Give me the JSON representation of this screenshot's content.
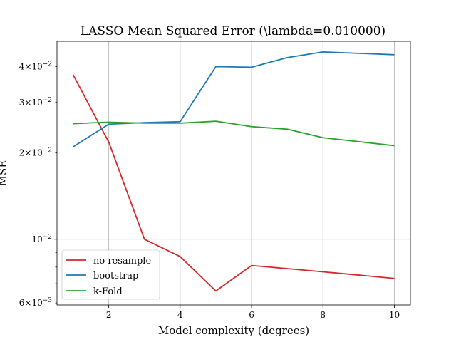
{
  "chart_data": {
    "type": "line",
    "title": "LASSO Mean Squared Error (\\lambda=0.010000)",
    "xlabel": "Model complexity (degrees)",
    "ylabel": "MSE",
    "yscale": "log",
    "grid": true,
    "legend": "bottom-left",
    "x": [
      1,
      2,
      3,
      4,
      5,
      6,
      7,
      8,
      9,
      10
    ],
    "xticks": [
      2,
      4,
      6,
      8,
      10
    ],
    "xtick_labels": [
      "2",
      "4",
      "6",
      "8",
      "10"
    ],
    "xlim": [
      0.55,
      10.45
    ],
    "ylim": [
      0.0059,
      0.049
    ],
    "yticks_major": [
      0.01
    ],
    "yticks_major_labels": [
      "10^{-2}"
    ],
    "yticks_minor": [
      0.006,
      0.02,
      0.03,
      0.04
    ],
    "yticks_minor_labels": [
      "6×10^{-3}",
      "2×10^{-2}",
      "3×10^{-2}",
      "4×10^{-2}"
    ],
    "series": [
      {
        "name": "no resample",
        "color": "#d62728",
        "values": [
          0.0375,
          0.0218,
          0.01,
          0.0087,
          0.0066,
          0.0081,
          0.0079,
          0.0077,
          0.0075,
          0.0073
        ]
      },
      {
        "name": "bootstrap",
        "color": "#1f77b4",
        "values": [
          0.021,
          0.0252,
          0.0255,
          0.0257,
          0.04,
          0.0398,
          0.043,
          0.045,
          0.0445,
          0.044
        ]
      },
      {
        "name": "k-Fold",
        "color": "#2ca02c",
        "values": [
          0.0253,
          0.0256,
          0.0254,
          0.0254,
          0.0258,
          0.0247,
          0.0242,
          0.0226,
          0.0219,
          0.0212
        ]
      }
    ]
  }
}
